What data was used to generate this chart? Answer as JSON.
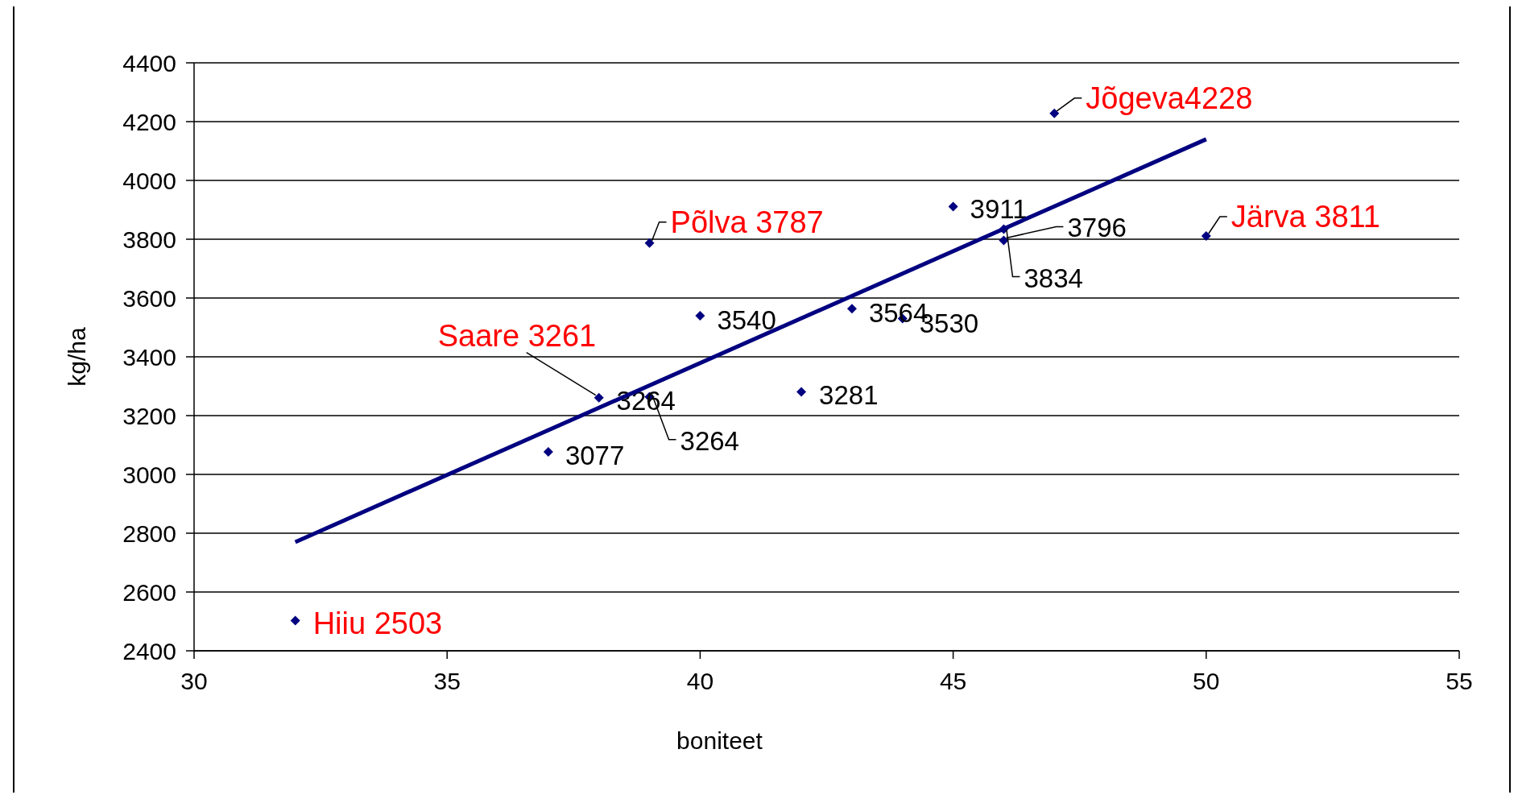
{
  "chart_data": {
    "type": "scatter",
    "xlabel": "boniteet",
    "ylabel": "kg/ha",
    "xlim": [
      30,
      55
    ],
    "xticks": [
      30,
      35,
      40,
      45,
      50,
      55
    ],
    "ylim": [
      2400,
      4400
    ],
    "yticks": [
      2400,
      2600,
      2800,
      3000,
      3200,
      3400,
      3600,
      3800,
      4000,
      4200,
      4400
    ],
    "grid": "y",
    "marker": "diamond",
    "series": [
      {
        "color": "#000080",
        "x": [
          32,
          37,
          38,
          39,
          39,
          39,
          40,
          42,
          43,
          44,
          45,
          46,
          46,
          47,
          50
        ],
        "values": [
          2503,
          3077,
          3261,
          3264,
          3264,
          3787,
          3540,
          3281,
          3564,
          3530,
          3911,
          3834,
          3796,
          4228,
          3811
        ],
        "value_labels": [
          "Hiiu 2503",
          "3077",
          "Saare 3261",
          "3264",
          "3264",
          "Põlva 3787",
          "3540",
          "3281",
          "3564",
          "3530",
          "3911",
          "3834",
          "3796",
          "Jõgeva4228",
          "Järva 3811"
        ]
      },
      {
        "type": "line",
        "color": "#000080",
        "marker": "none",
        "x": [
          32,
          50
        ],
        "values": [
          2770,
          4140
        ]
      }
    ]
  }
}
